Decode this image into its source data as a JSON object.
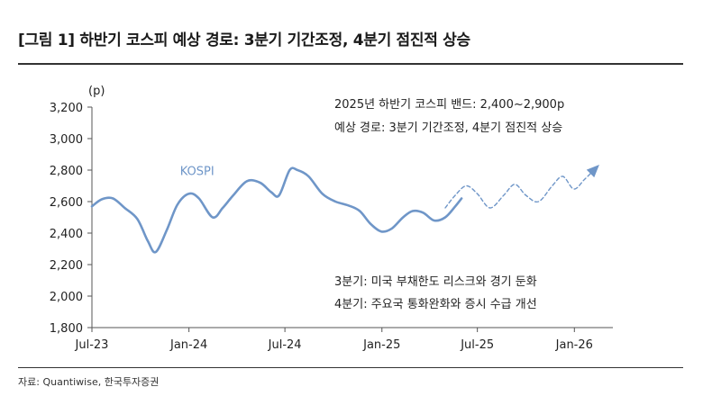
{
  "figure": {
    "title": "[그림 1] 하반기 코스피 예상 경로: 3분기 기간조정, 4분기 점진적 상승",
    "source": "자료: Quantiwise, 한국투자증권"
  },
  "chart_data": {
    "type": "line",
    "title": "[그림 1] 하반기 코스피 예상 경로: 3분기 기간조정, 4분기 점진적 상승",
    "y_unit_label": "(p)",
    "ylim": [
      1800,
      3200
    ],
    "yticks": [
      1800,
      2000,
      2200,
      2400,
      2600,
      2800,
      3000,
      3200
    ],
    "ytick_labels": [
      "1,800",
      "2,000",
      "2,200",
      "2,400",
      "2,600",
      "2,800",
      "3,000",
      "3,200"
    ],
    "xlim": [
      "2023-07-01",
      "2026-03-15"
    ],
    "xticks": [
      "2023-07-01",
      "2024-01-01",
      "2024-07-01",
      "2025-01-01",
      "2025-07-01",
      "2026-01-01"
    ],
    "xtick_labels": [
      "Jul-23",
      "Jan-24",
      "Jul-24",
      "Jan-25",
      "Jul-25",
      "Jan-26"
    ],
    "grid": false,
    "series": [
      {
        "name": "KOSPI",
        "style": "solid",
        "color": "#6f96c8",
        "x": [
          "2023-07-01",
          "2023-07-20",
          "2023-08-10",
          "2023-09-01",
          "2023-09-25",
          "2023-10-15",
          "2023-10-30",
          "2023-11-20",
          "2023-12-10",
          "2024-01-01",
          "2024-01-20",
          "2024-02-15",
          "2024-03-05",
          "2024-03-25",
          "2024-04-20",
          "2024-05-15",
          "2024-06-05",
          "2024-06-20",
          "2024-07-10",
          "2024-07-25",
          "2024-08-15",
          "2024-09-10",
          "2024-10-05",
          "2024-10-30",
          "2024-11-20",
          "2024-12-10",
          "2024-12-31",
          "2025-01-20",
          "2025-02-10",
          "2025-02-28",
          "2025-03-20",
          "2025-04-10",
          "2025-05-01",
          "2025-05-20",
          "2025-06-01"
        ],
        "y": [
          2570,
          2615,
          2620,
          2560,
          2490,
          2350,
          2280,
          2420,
          2580,
          2650,
          2620,
          2500,
          2560,
          2640,
          2730,
          2720,
          2660,
          2640,
          2800,
          2800,
          2760,
          2650,
          2600,
          2575,
          2540,
          2460,
          2410,
          2430,
          2500,
          2540,
          2530,
          2480,
          2500,
          2570,
          2620
        ]
      },
      {
        "name": "",
        "style": "dashed",
        "color": "#6f96c8",
        "x": [
          "2025-05-01",
          "2025-05-20",
          "2025-06-10",
          "2025-07-01",
          "2025-07-25",
          "2025-08-20",
          "2025-09-10",
          "2025-10-01",
          "2025-10-25",
          "2025-11-20",
          "2025-12-10",
          "2025-12-31",
          "2026-01-20",
          "2026-02-10"
        ],
        "y": [
          2560,
          2640,
          2700,
          2650,
          2560,
          2640,
          2710,
          2640,
          2600,
          2700,
          2760,
          2680,
          2740,
          2810
        ]
      }
    ],
    "arrow_at_end_of": "dashed",
    "annotations": [
      "2025년 하반기 코스피 밴드: 2,400~2,900p",
      "예상 경로: 3분기 기간조정, 4분기 점진적 상승",
      "3분기: 미국 부채한도 리스크와 경기 둔화",
      "4분기: 주요국 통화완화와 증시 수급 개선"
    ]
  }
}
